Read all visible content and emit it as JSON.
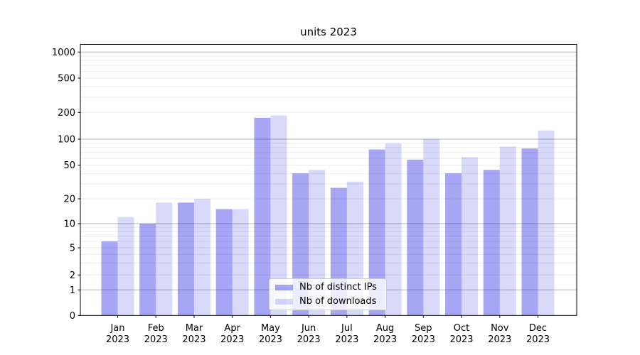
{
  "chart_data": {
    "type": "bar",
    "title": "units 2023",
    "categories": [
      "Jan 2023",
      "Feb 2023",
      "Mar 2023",
      "Apr 2023",
      "May 2023",
      "Jun 2023",
      "Jul 2023",
      "Aug 2023",
      "Sep 2023",
      "Oct 2023",
      "Nov 2023",
      "Dec 2023"
    ],
    "series": [
      {
        "name": "Nb of distinct IPs",
        "color": "rgba(20,20,225,0.38)",
        "color_hex_on_white": "#a5a5f3",
        "values": [
          6,
          10,
          18,
          15,
          174,
          40,
          27,
          76,
          58,
          40,
          44,
          78
        ]
      },
      {
        "name": "Nb of downloads",
        "color": "rgba(20,20,225,0.16)",
        "color_hex_on_white": "#d9d9fb",
        "values": [
          12,
          18,
          20,
          15,
          185,
          44,
          32,
          89,
          100,
          62,
          82,
          125
        ]
      }
    ],
    "y_axis": {
      "scale": "symlog",
      "ticks": [
        0,
        1,
        2,
        5,
        10,
        20,
        50,
        100,
        200,
        500,
        1000
      ],
      "tick_labels": [
        "0",
        "1",
        "2",
        "5",
        "10",
        "20",
        "50",
        "100",
        "200",
        "500",
        "1000"
      ],
      "range": [
        0,
        1230
      ]
    },
    "x_axis": {
      "tick_label_line2": "2023"
    },
    "grid": {
      "horizontal": true,
      "vertical": false,
      "major_color": "#b3b3b3",
      "minor_color": "#ebebeb"
    },
    "legend": {
      "position": "inside-bottom-center",
      "entries": [
        "Nb of distinct IPs",
        "Nb of downloads"
      ]
    }
  }
}
